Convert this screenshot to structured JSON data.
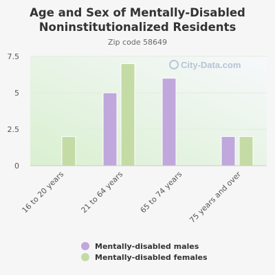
{
  "chart_data": {
    "type": "bar",
    "title": "Age and Sex of Mentally-Disabled Noninstitutionalized Residents",
    "subtitle": "Zip code 58649",
    "watermark": "City-Data.com",
    "categories": [
      "16 to 20 years",
      "21 to 64 years",
      "65 to 74 years",
      "75 years and over"
    ],
    "series": [
      {
        "name": "Mentally-disabled males",
        "color": "#c0a7dc",
        "values": [
          0,
          5,
          6,
          2
        ]
      },
      {
        "name": "Mentally-disabled females",
        "color": "#c5dba6",
        "values": [
          2,
          7,
          0,
          2
        ]
      }
    ],
    "yticks": [
      "0",
      "2.5",
      "5",
      "7.5"
    ],
    "ylim": [
      0,
      7.5
    ],
    "grid": true,
    "legend": "bottom"
  }
}
